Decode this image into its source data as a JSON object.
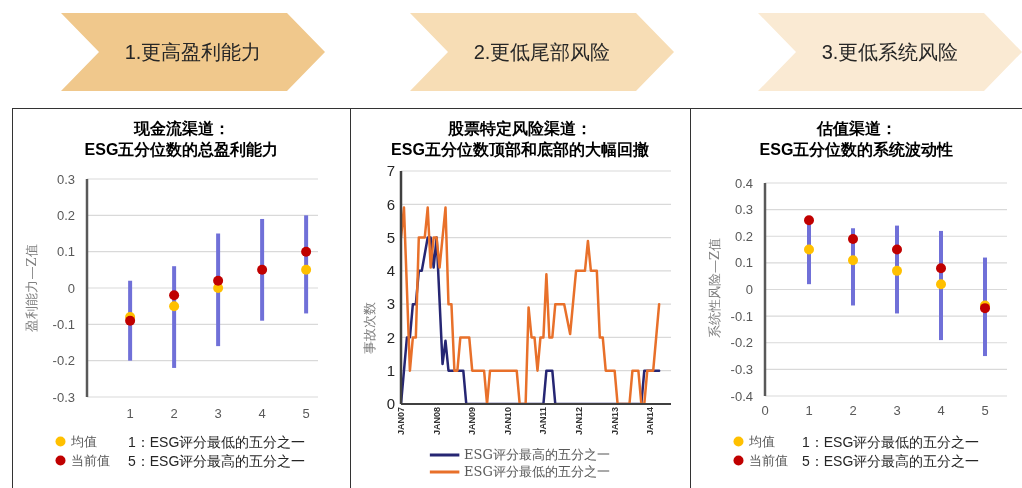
{
  "chart_data": [
    {
      "type": "scatter",
      "title": "1.更高盈利能力",
      "subtitle": "现金流渠道：\nESG五分位数的总盈利能力",
      "ylabel": "盈利能力—Z值",
      "categories": [
        "1",
        "2",
        "3",
        "4",
        "5"
      ],
      "series": [
        {
          "type": "bar",
          "color": "#7070d8",
          "base": [
            -0.2,
            -0.22,
            -0.16,
            -0.09,
            -0.07
          ],
          "values": [
            0.22,
            0.28,
            0.31,
            0.28,
            0.27
          ]
        },
        {
          "name": "均值",
          "color": "#ffc000",
          "values": [
            -0.08,
            -0.05,
            0,
            null,
            0.05
          ]
        },
        {
          "name": "当前值",
          "color": "#c00000",
          "values": [
            -0.09,
            -0.02,
            0.02,
            0.05,
            0.1
          ]
        }
      ],
      "ylim": [
        -0.3,
        0.3
      ],
      "yticks": [
        -0.3,
        -0.2,
        -0.1,
        0,
        0.1,
        0.2,
        0.3
      ],
      "grid": "y",
      "legend": "bottom left",
      "marker": "circle",
      "annotations": [
        "1：ESG评分最低的五分之一",
        "5：ESG评分最高的五分之一"
      ]
    },
    {
      "type": "line",
      "title": "2.更低尾部风险",
      "subtitle": "股票特定风险渠道：\nESG五分位数顶部和底部的大幅回撤",
      "ylabel": "事故次数",
      "xlim": [
        "2007-01",
        "2014-08"
      ],
      "xticks": [
        {
          "value": "2007-01",
          "label": "JAN07"
        },
        {
          "value": "2008-01",
          "label": "JAN08"
        },
        {
          "value": "2009-01",
          "label": "JAN09"
        },
        {
          "value": "2010-01",
          "label": "JAN10"
        },
        {
          "value": "2011-01",
          "label": "JAN11"
        },
        {
          "value": "2012-01",
          "label": "JAN12"
        },
        {
          "value": "2013-01",
          "label": "JAN13"
        },
        {
          "value": "2014-01",
          "label": "JAN14"
        }
      ],
      "ylim": [
        0,
        7
      ],
      "yticks": [
        0,
        1,
        2,
        3,
        4,
        5,
        6,
        7
      ],
      "grid": "y",
      "legend": "bottom",
      "series": [
        {
          "name": "ESG评分最高的五分之一",
          "color": "#262673",
          "x": [
            "2007-01",
            "2007-03",
            "2007-04",
            "2007-05",
            "2007-06",
            "2007-07",
            "2007-08",
            "2007-10",
            "2007-11",
            "2007-12",
            "2008-01",
            "2008-03",
            "2008-04",
            "2008-05",
            "2008-10",
            "2008-11",
            "2011-01",
            "2011-02",
            "2011-04",
            "2011-05",
            "2013-10",
            "2013-11",
            "2014-04"
          ],
          "values": [
            0,
            2,
            2,
            3,
            3,
            4,
            4,
            5,
            5,
            4.1,
            5,
            1.2,
            1.9,
            1,
            1,
            0,
            0,
            1,
            1,
            0,
            0,
            1,
            1
          ]
        },
        {
          "name": "ESG评分最低的五分之一",
          "color": "#e8702a",
          "x": [
            "2007-01",
            "2007-02",
            "2007-04",
            "2007-05",
            "2007-06",
            "2007-07",
            "2007-09",
            "2007-10",
            "2007-11",
            "2007-12",
            "2008-01",
            "2008-02",
            "2008-04",
            "2008-05",
            "2008-06",
            "2008-07",
            "2008-08",
            "2008-09",
            "2008-12",
            "2009-01",
            "2009-05",
            "2009-06",
            "2009-07",
            "2010-04",
            "2010-05",
            "2010-07",
            "2010-08",
            "2010-09",
            "2010-10",
            "2010-11",
            "2010-12",
            "2011-01",
            "2011-02",
            "2011-03",
            "2011-04",
            "2011-05",
            "2011-08",
            "2011-10",
            "2011-12",
            "2012-03",
            "2012-04",
            "2012-05",
            "2012-07",
            "2012-08",
            "2012-09",
            "2012-10",
            "2013-01",
            "2013-02",
            "2013-06",
            "2013-07",
            "2013-09",
            "2013-10",
            "2013-11",
            "2013-12",
            "2014-02",
            "2014-04"
          ],
          "values": [
            5,
            5.9,
            1,
            2,
            2,
            5,
            5,
            5.9,
            4.1,
            5,
            5,
            4.1,
            5.9,
            3,
            3,
            1,
            1,
            2,
            2,
            1,
            1,
            0,
            1,
            1,
            0,
            0,
            2.9,
            2,
            2,
            1,
            2,
            2,
            3.9,
            2,
            2,
            3,
            3,
            2.1,
            4,
            4,
            4.9,
            4,
            4,
            2,
            2,
            1,
            1,
            0,
            0,
            1,
            1,
            0,
            0,
            1,
            1,
            3
          ]
        }
      ]
    },
    {
      "type": "scatter",
      "title": "3.更低系统风险",
      "subtitle": "估值渠道：\nESG五分位数的系统波动性",
      "ylabel": "系统性风险—Z值",
      "x": [
        1,
        2,
        3,
        4,
        5
      ],
      "xlim": [
        0,
        5.5
      ],
      "xticks": [
        0,
        1,
        2,
        3,
        4,
        5
      ],
      "series": [
        {
          "type": "bar",
          "color": "#7070d8",
          "base": [
            0.02,
            -0.06,
            -0.09,
            -0.19,
            -0.25
          ],
          "values": [
            0.23,
            0.29,
            0.33,
            0.41,
            0.37
          ]
        },
        {
          "name": "均值",
          "color": "#ffc000",
          "values": [
            0.15,
            0.11,
            0.07,
            0.02,
            -0.06
          ]
        },
        {
          "name": "当前值",
          "color": "#c00000",
          "values": [
            0.26,
            0.19,
            0.15,
            0.08,
            -0.07
          ]
        }
      ],
      "ylim": [
        -0.4,
        0.4
      ],
      "yticks": [
        -0.4,
        -0.3,
        -0.2,
        -0.1,
        0,
        0.1,
        0.2,
        0.3,
        0.4
      ],
      "grid": "y",
      "legend": "bottom left",
      "marker": "circle",
      "annotations": [
        "1：ESG评分最低的五分之一",
        "5：ESG评分最高的五分之一"
      ]
    }
  ]
}
